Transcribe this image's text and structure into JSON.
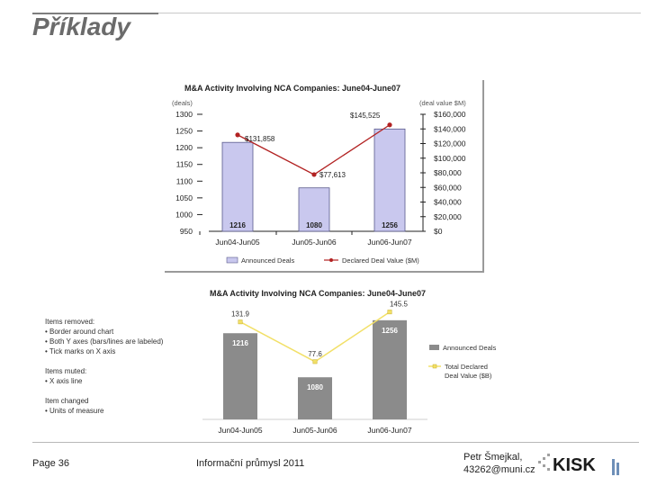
{
  "slide": {
    "title": "Příklady",
    "footer_page": "Page 36",
    "footer_center": "Informační průmysl 2011",
    "footer_author_line1": "Petr Šmejkal,",
    "footer_author_line2": "43262@muni.cz",
    "logo_text": "KISK"
  },
  "notes": [
    "Items removed:",
    "• Border around chart",
    "• Both Y axes (bars/lines are labeled)",
    "• Tick marks on X axis",
    "",
    "Items muted:",
    "• X axis line",
    "",
    "Item changed",
    "• Units of measure"
  ],
  "colors": {
    "bar_before": "#c9c8ee",
    "bar_before_border": "#5a5a8c",
    "line_before": "#b22222",
    "bar_after": "#8b8b8b",
    "line_after": "#f2e068",
    "title_gray": "#6b6b6b"
  },
  "chart_data": [
    {
      "type": "bar",
      "title": "M&A Activity Involving NCA Companies: June04-June07",
      "left_axis_title": "(deals)",
      "right_axis_title": "(deal value $M)",
      "categories": [
        "Jun04-Jun05",
        "Jun05-Jun06",
        "Jun06-Jun07"
      ],
      "left_ticks": [
        "1300",
        "1250",
        "1200",
        "1150",
        "1100",
        "1050",
        "1000",
        "950"
      ],
      "right_ticks": [
        "$160,000",
        "$140,000",
        "$120,000",
        "$100,000",
        "$80,000",
        "$60,000",
        "$40,000",
        "$20,000",
        "$0"
      ],
      "ylim": [
        950,
        1300
      ],
      "y2lim": [
        0,
        160000
      ],
      "series": [
        {
          "name": "Announced Deals",
          "kind": "bar",
          "values": [
            1216,
            1080,
            1256
          ],
          "labels": [
            "1216",
            "1080",
            "1256"
          ]
        },
        {
          "name": "Declared Deal Value ($M)",
          "kind": "line",
          "values": [
            131858,
            77613,
            145525
          ],
          "labels": [
            "$131,858",
            "$77,613",
            "$145,525"
          ]
        }
      ]
    },
    {
      "type": "bar",
      "title": "M&A Activity Involving NCA Companies: June04-June07",
      "categories": [
        "Jun04-Jun05",
        "Jun05-Jun06",
        "Jun06-Jun07"
      ],
      "ylim": [
        950,
        1300
      ],
      "y2lim": [
        0,
        160
      ],
      "legend": [
        "Announced Deals",
        "Total Declared Deal Value ($B)"
      ],
      "series": [
        {
          "name": "Announced Deals",
          "kind": "bar",
          "values": [
            1216,
            1080,
            1256
          ],
          "labels": [
            "1216",
            "1080",
            "1256"
          ]
        },
        {
          "name": "Total Declared Deal Value ($B)",
          "kind": "line",
          "values": [
            131.9,
            77.6,
            145.5
          ],
          "labels": [
            "131.9",
            "77.6",
            "145.5"
          ]
        }
      ]
    }
  ]
}
